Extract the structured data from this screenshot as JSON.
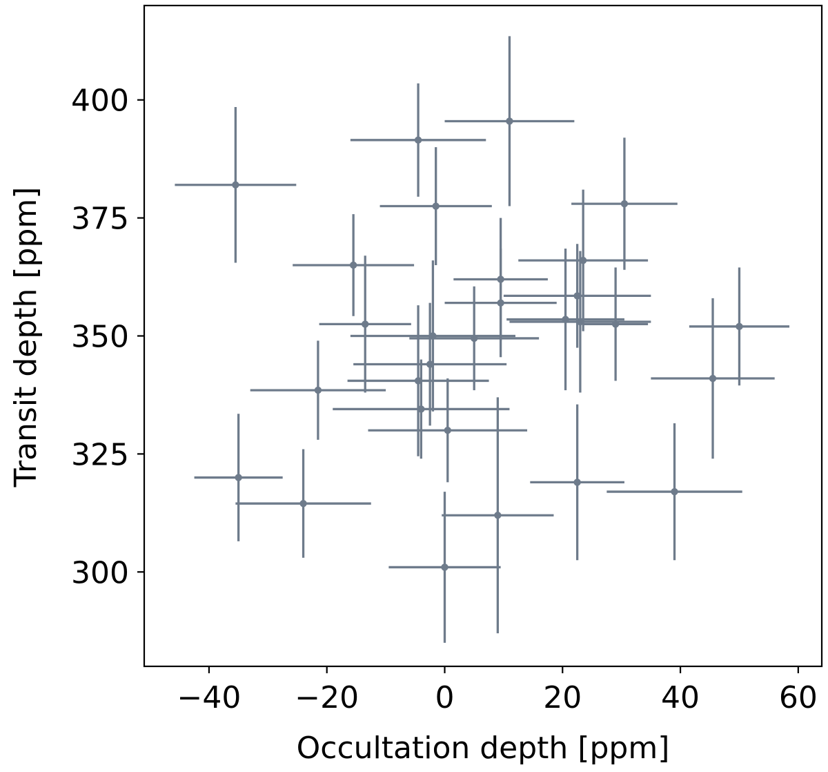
{
  "chart_data": {
    "type": "scatter",
    "title": "",
    "xlabel": "Occultation depth [ppm]",
    "ylabel": "Transit depth [ppm]",
    "xlim": [
      -51,
      64
    ],
    "ylim": [
      280,
      420
    ],
    "xticks": [
      -40,
      -20,
      0,
      20,
      40,
      60
    ],
    "yticks": [
      300,
      325,
      350,
      375,
      400
    ],
    "xtick_labels": [
      "−40",
      "−20",
      "0",
      "20",
      "40",
      "60"
    ],
    "ytick_labels": [
      "300",
      "325",
      "350",
      "375",
      "400"
    ],
    "grid": false,
    "marker_color": "#6e7b8b",
    "series": [
      {
        "points": [
          {
            "x": -35.5,
            "y": 382.0,
            "xerr": 10.3,
            "yerr": 16.5
          },
          {
            "x": -15.5,
            "y": 365.0,
            "xerr": 10.3,
            "yerr": 10.8
          },
          {
            "x": -13.5,
            "y": 352.5,
            "xerr": 7.8,
            "yerr": 14.5
          },
          {
            "x": -21.5,
            "y": 338.5,
            "xerr": 11.5,
            "yerr": 10.5
          },
          {
            "x": -35.0,
            "y": 320.0,
            "xerr": 7.5,
            "yerr": 13.5
          },
          {
            "x": -24.0,
            "y": 314.5,
            "xerr": 11.5,
            "yerr": 11.5
          },
          {
            "x": -4.5,
            "y": 391.5,
            "xerr": 11.5,
            "yerr": 12.0
          },
          {
            "x": 11.0,
            "y": 395.5,
            "xerr": 11.0,
            "yerr": 18.0
          },
          {
            "x": -1.5,
            "y": 377.5,
            "xerr": 9.5,
            "yerr": 12.5
          },
          {
            "x": 9.5,
            "y": 362.0,
            "xerr": 8.0,
            "yerr": 13.0
          },
          {
            "x": 9.5,
            "y": 357.0,
            "xerr": 9.5,
            "yerr": 11.5
          },
          {
            "x": 5.0,
            "y": 349.5,
            "xerr": 11.0,
            "yerr": 11.0
          },
          {
            "x": -2.0,
            "y": 350.0,
            "xerr": 14.0,
            "yerr": 16.0
          },
          {
            "x": -2.5,
            "y": 344.0,
            "xerr": 13.0,
            "yerr": 13.0
          },
          {
            "x": -4.5,
            "y": 340.5,
            "xerr": 12.0,
            "yerr": 16.0
          },
          {
            "x": -4.0,
            "y": 334.5,
            "xerr": 15.0,
            "yerr": 10.5
          },
          {
            "x": 0.5,
            "y": 330.0,
            "xerr": 13.5,
            "yerr": 11.0
          },
          {
            "x": 9.0,
            "y": 312.0,
            "xerr": 9.5,
            "yerr": 25.0
          },
          {
            "x": 0.0,
            "y": 301.0,
            "xerr": 9.5,
            "yerr": 16.0
          },
          {
            "x": 20.5,
            "y": 353.5,
            "xerr": 10.0,
            "yerr": 15.0
          },
          {
            "x": 22.5,
            "y": 358.5,
            "xerr": 12.5,
            "yerr": 11.0
          },
          {
            "x": 23.5,
            "y": 366.0,
            "xerr": 11.0,
            "yerr": 15.0
          },
          {
            "x": 23.0,
            "y": 353.0,
            "xerr": 12.0,
            "yerr": 15.0
          },
          {
            "x": 29.0,
            "y": 352.5,
            "xerr": 5.5,
            "yerr": 12.0
          },
          {
            "x": 30.5,
            "y": 378.0,
            "xerr": 9.0,
            "yerr": 14.0
          },
          {
            "x": 50.0,
            "y": 352.0,
            "xerr": 8.5,
            "yerr": 12.5
          },
          {
            "x": 45.5,
            "y": 341.0,
            "xerr": 10.5,
            "yerr": 17.0
          },
          {
            "x": 22.5,
            "y": 319.0,
            "xerr": 8.0,
            "yerr": 16.5
          },
          {
            "x": 39.0,
            "y": 317.0,
            "xerr": 11.5,
            "yerr": 14.5
          }
        ]
      }
    ]
  }
}
